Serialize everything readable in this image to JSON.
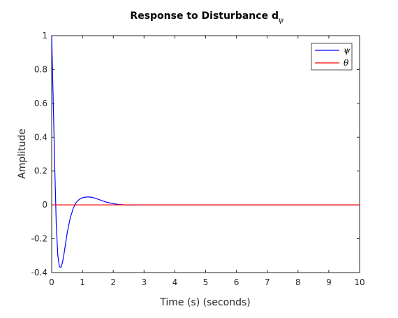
{
  "chart_data": {
    "type": "line",
    "title": "Response to Disturbance d",
    "title_subscript": "ψ",
    "xlabel": "Time (s) (seconds)",
    "ylabel": "Amplitude",
    "xlim": [
      0,
      10
    ],
    "ylim": [
      -0.4,
      1
    ],
    "xticks": [
      0,
      1,
      2,
      3,
      4,
      5,
      6,
      7,
      8,
      9,
      10
    ],
    "yticks": [
      -0.4,
      -0.2,
      0,
      0.2,
      0.4,
      0.6,
      0.8,
      1
    ],
    "xtick_labels": [
      "0",
      "1",
      "2",
      "3",
      "4",
      "5",
      "6",
      "7",
      "8",
      "9",
      "10"
    ],
    "ytick_labels": [
      "-0.4",
      "-0.2",
      "0",
      "0.2",
      "0.4",
      "0.6",
      "0.8",
      "1"
    ],
    "grid": false,
    "legend_position": "top-right",
    "series": [
      {
        "name": "ψ",
        "color": "#0000ff",
        "x": [
          0,
          0.05,
          0.1,
          0.15,
          0.2,
          0.25,
          0.3,
          0.35,
          0.4,
          0.45,
          0.5,
          0.6,
          0.7,
          0.8,
          0.9,
          1.0,
          1.1,
          1.2,
          1.3,
          1.4,
          1.5,
          1.6,
          1.8,
          2.0,
          2.2,
          2.4,
          2.6,
          3.0,
          4.0,
          6.0,
          8.0,
          10.0
        ],
        "y": [
          1.0,
          0.62,
          0.22,
          -0.12,
          -0.3,
          -0.365,
          -0.37,
          -0.34,
          -0.29,
          -0.23,
          -0.17,
          -0.08,
          -0.02,
          0.015,
          0.033,
          0.042,
          0.046,
          0.047,
          0.045,
          0.04,
          0.034,
          0.027,
          0.015,
          0.007,
          0.002,
          0.0,
          -0.001,
          0.0,
          0.0,
          0.0,
          0.0,
          0.0
        ]
      },
      {
        "name": "θ",
        "color": "#ff0000",
        "x": [
          0,
          10
        ],
        "y": [
          0,
          0
        ]
      }
    ]
  }
}
